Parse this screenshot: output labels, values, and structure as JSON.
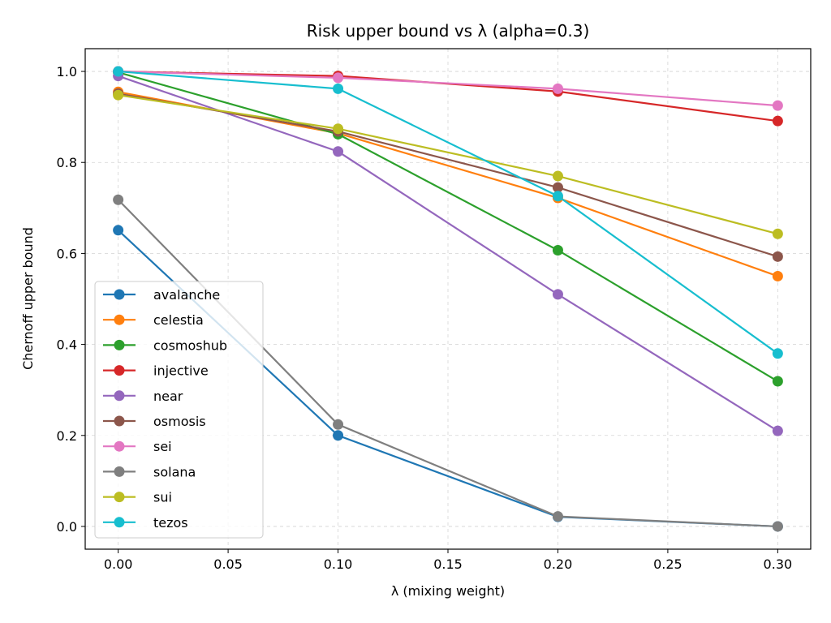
{
  "chart_data": {
    "type": "line",
    "title": "Risk upper bound vs λ (alpha=0.3)",
    "xlabel": "λ (mixing weight)",
    "ylabel": "Chernoff upper bound",
    "x": [
      0.0,
      0.1,
      0.2,
      0.3
    ],
    "xlim": [
      -0.015,
      0.315
    ],
    "ylim": [
      -0.05,
      1.05
    ],
    "xticks": [
      "0.00",
      "0.05",
      "0.10",
      "0.15",
      "0.20",
      "0.25",
      "0.30"
    ],
    "xtick_values": [
      0.0,
      0.05,
      0.1,
      0.15,
      0.2,
      0.25,
      0.3
    ],
    "yticks": [
      "0.0",
      "0.2",
      "0.4",
      "0.6",
      "0.8",
      "1.0"
    ],
    "ytick_values": [
      0.0,
      0.2,
      0.4,
      0.6,
      0.8,
      1.0
    ],
    "grid": true,
    "legend_position": "lower-left",
    "series": [
      {
        "name": "avalanche",
        "color": "#1f77b4",
        "values": [
          0.651,
          0.2,
          0.021,
          0.0
        ]
      },
      {
        "name": "celestia",
        "color": "#ff7f0e",
        "values": [
          0.955,
          0.864,
          0.722,
          0.55
        ]
      },
      {
        "name": "cosmoshub",
        "color": "#2ca02c",
        "values": [
          0.998,
          0.862,
          0.607,
          0.319
        ]
      },
      {
        "name": "injective",
        "color": "#d62728",
        "values": [
          1.0,
          0.99,
          0.956,
          0.891
        ]
      },
      {
        "name": "near",
        "color": "#9467bd",
        "values": [
          0.99,
          0.824,
          0.51,
          0.21
        ]
      },
      {
        "name": "osmosis",
        "color": "#8c564b",
        "values": [
          0.951,
          0.868,
          0.745,
          0.593
        ]
      },
      {
        "name": "sei",
        "color": "#e377c2",
        "values": [
          1.0,
          0.986,
          0.962,
          0.925
        ]
      },
      {
        "name": "solana",
        "color": "#7f7f7f",
        "values": [
          0.718,
          0.224,
          0.022,
          0.0
        ]
      },
      {
        "name": "sui",
        "color": "#bcbd22",
        "values": [
          0.948,
          0.874,
          0.77,
          0.643
        ]
      },
      {
        "name": "tezos",
        "color": "#17becf",
        "values": [
          1.0,
          0.962,
          0.726,
          0.38
        ]
      }
    ]
  }
}
